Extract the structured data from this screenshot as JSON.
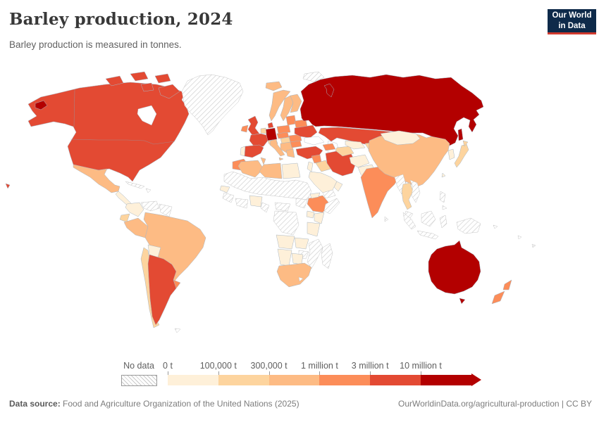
{
  "header": {
    "title": "Barley production, 2024",
    "subtitle": "Barley production is measured in tonnes.",
    "logo": {
      "line1": "Our World",
      "line2": "in Data",
      "bg": "#0e2a4a",
      "accent": "#d13a2e"
    }
  },
  "legend": {
    "no_data_label": "No data",
    "tick_labels": [
      "0 t",
      "100,000 t",
      "300,000 t",
      "1 million t",
      "3 million t",
      "10 million t"
    ],
    "bin_colors": {
      "b1": "#fef0d9",
      "b2": "#fdd49e",
      "b3": "#fdbb84",
      "b4": "#fc8d59",
      "b5": "#e34a33",
      "b6": "#b30000",
      "nd": "hatch"
    }
  },
  "footer": {
    "source_label": "Data source:",
    "source_text": " Food and Agriculture Organization of the United Nations (2025)",
    "link_text": "OurWorldinData.org/agricultural-production | CC BY"
  },
  "map_fills": {
    "hawaii": "b5",
    "chukotka": "b6",
    "namerica": "b5",
    "arctic1": "b5",
    "arctic2": "b5",
    "arctic3": "b5",
    "arctic4": "b5",
    "arctic5": "b5",
    "greenland": "nd",
    "mexico": "b3",
    "centralamerica": "b1",
    "cuba": "nd",
    "hispaniola": "nd",
    "colombia": "b1",
    "venezuela": "nd",
    "guyanas": "nd",
    "ecuador": "b2",
    "peru": "b3",
    "brazil": "b3",
    "bolivia": "b1",
    "paraguay": "nd",
    "uruguay": "b4",
    "chile": "b2",
    "argentina": "b5",
    "falklands": "nd",
    "iceland": "b3",
    "svalbard": "nd",
    "norway": "b3",
    "sweden": "b3",
    "finland": "b3",
    "uk": "b5",
    "ireland": "b4",
    "denmark": "b5",
    "germany": "b6",
    "benelux": "b2",
    "france": "b5",
    "portugal": "b1",
    "spain": "b5",
    "italy": "b3",
    "sicily": "b3",
    "alpine": "b2",
    "poland": "b4",
    "czech": "b4",
    "hungary": "b2",
    "balkans": "b3",
    "romania": "b4",
    "bulgaria": "b4",
    "greece": "b3",
    "baltics": "b4",
    "belarus": "b4",
    "ukraine": "b5",
    "russia": "b6",
    "novayazemlya": "b6",
    "sakhalin": "b6",
    "kazakhstan": "b5",
    "caucasus": "b4",
    "turkey": "b5",
    "syria": "b4",
    "iraq": "b2",
    "levant": "b1",
    "iran": "b5",
    "saudi": "b1",
    "yemen": "nd",
    "oman": "b1",
    "turkmenistan": "b2",
    "uzbekistan": "b1",
    "kyrgyzstan": "b2",
    "afghanistan": "b1",
    "pakistan": "b1",
    "india": "b4",
    "nepal": "b4",
    "bangladesh": "b4",
    "srilanka": "nd",
    "china": "b3",
    "mongolia": "b1",
    "korea": "b1",
    "japan": "b2",
    "hokkaido": "b2",
    "taiwan": "b1",
    "myanmar": "nd",
    "thailand": "b2",
    "laosvietnam": "nd",
    "malaysia": "nd",
    "philippines1": "nd",
    "philippines2": "nd",
    "sumatra": "nd",
    "borneo": "nd",
    "java": "nd",
    "sulawesi": "nd",
    "newguinea": "nd",
    "australia": "b6",
    "tasmania": "b6",
    "nznorth": "b4",
    "nzsouth": "b4",
    "solomons": "nd",
    "fiji1": "nd",
    "fiji2": "nd",
    "morocco": "b4",
    "algeria": "b3",
    "tunisia": "b3",
    "libya": "b3",
    "egypt": "b1",
    "sahara": "nd",
    "senegal": "b1",
    "guinea": "nd",
    "ghana": "nd",
    "nigeria": "b1",
    "cameroon": "nd",
    "car": "nd",
    "southsudan": "nd",
    "ethiopia": "b4",
    "eritrea": "b1",
    "somalia": "nd",
    "uganda": "b1",
    "kenya": "b1",
    "drc": "nd",
    "tanzania": "b1",
    "angola": "b1",
    "zambia": "b1",
    "mozambique": "nd",
    "zimbabwe": "nd",
    "namibia": "b1",
    "botswana": "b1",
    "southafrica": "b3",
    "madagascar": "nd"
  },
  "chart_data": {
    "type": "choropleth",
    "title": "Barley production, 2024",
    "subtitle": "Barley production is measured in tonnes.",
    "unit": "tonnes",
    "legend_bins": [
      "0 t",
      "100,000 t",
      "300,000 t",
      "1 million t",
      "3 million t",
      "10 million t"
    ],
    "legend_colors": [
      "#fef0d9",
      "#fdd49e",
      "#fdbb84",
      "#fc8d59",
      "#e34a33",
      "#b30000"
    ],
    "no_data_label": "No data",
    "countries_by_bin": {
      "10 million t and more": [
        "Russia",
        "Germany",
        "Australia"
      ],
      "3 million t - 10 million t": [
        "Canada",
        "United States",
        "France",
        "Spain",
        "United Kingdom",
        "Denmark",
        "Ukraine",
        "Turkey",
        "Kazakhstan",
        "Iran",
        "Argentina"
      ],
      "1 million t - 3 million t": [
        "India",
        "Ethiopia",
        "Morocco",
        "Poland",
        "Ireland",
        "Romania",
        "Bulgaria",
        "Czechia",
        "Belarus",
        "Lithuania",
        "Syria",
        "New Zealand",
        "Uruguay",
        "Nepal"
      ],
      "300,000 t - 1 million t": [
        "Mexico",
        "Brazil",
        "Peru",
        "China",
        "South Africa",
        "Algeria",
        "Tunisia",
        "Libya",
        "Norway",
        "Sweden",
        "Finland",
        "Iceland",
        "Italy",
        "Greece",
        "Serbia",
        "Azerbaijan"
      ],
      "100,000 t - 300,000 t": [
        "Chile",
        "Ecuador",
        "Japan",
        "Iraq",
        "Thailand",
        "Turkmenistan",
        "Kyrgyzstan",
        "Hungary",
        "Austria",
        "Netherlands"
      ],
      "0 t - 100,000 t": [
        "Colombia",
        "Bolivia",
        "Egypt",
        "Saudi Arabia",
        "Afghanistan",
        "Pakistan",
        "Mongolia",
        "South Korea",
        "Portugal",
        "Nigeria",
        "Kenya",
        "Tanzania",
        "Angola",
        "Zambia",
        "Namibia",
        "Botswana",
        "Uzbekistan",
        "Senegal"
      ],
      "No data": [
        "Greenland",
        "Venezuela",
        "Guyana",
        "Suriname",
        "Paraguay",
        "Cuba",
        "Mauritania",
        "Mali",
        "Niger",
        "Chad",
        "Sudan",
        "South Sudan",
        "Somalia",
        "Democratic Republic of Congo",
        "Mozambique",
        "Zimbabwe",
        "Madagascar",
        "Yemen",
        "Myanmar",
        "Laos",
        "Vietnam",
        "Malaysia",
        "Indonesia",
        "Philippines",
        "Papua New Guinea"
      ]
    }
  }
}
